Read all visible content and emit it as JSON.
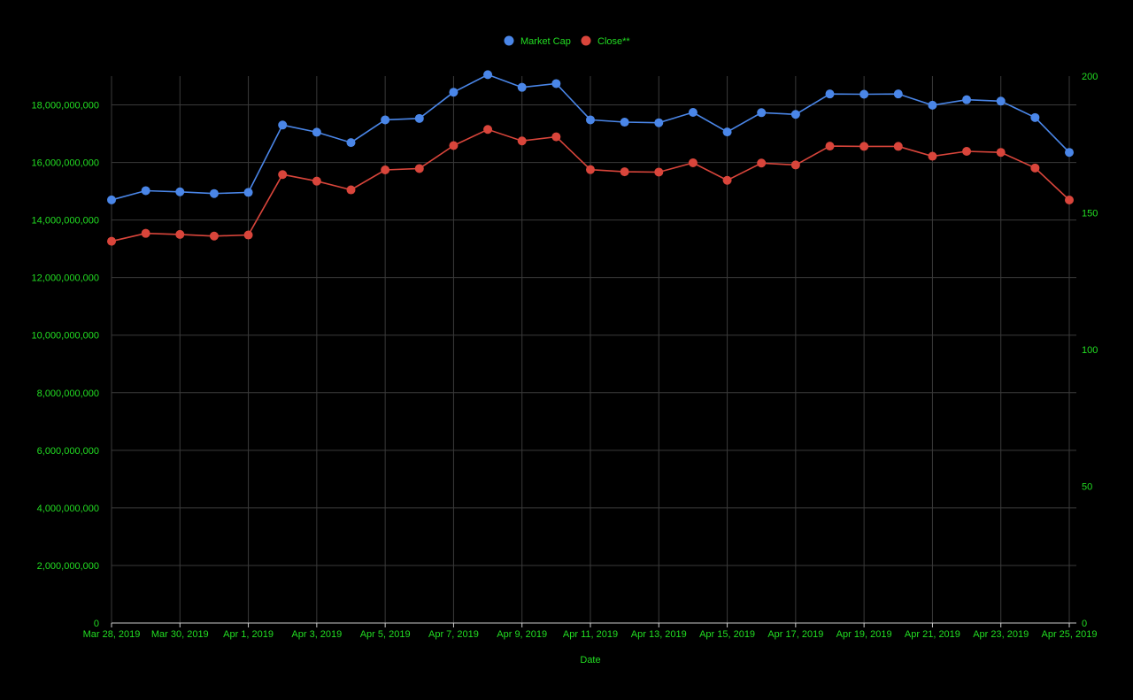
{
  "colors": {
    "background": "#000000",
    "text": "#22dd22",
    "grid": "#3a3a3a",
    "baseline": "#cccccc",
    "market_cap": "#4a86e8",
    "close": "#d9453b"
  },
  "chart_data": {
    "type": "line",
    "x_axis_title": "Date",
    "x_tick_labels": [
      "Mar 28, 2019",
      "Mar 30, 2019",
      "Apr 1, 2019",
      "Apr 3, 2019",
      "Apr 5, 2019",
      "Apr 7, 2019",
      "Apr 9, 2019",
      "Apr 11, 2019",
      "Apr 13, 2019",
      "Apr 15, 2019",
      "Apr 17, 2019",
      "Apr 19, 2019",
      "Apr 21, 2019",
      "Apr 23, 2019",
      "Apr 25, 2019"
    ],
    "x": [
      "Mar 28, 2019",
      "Mar 29, 2019",
      "Mar 30, 2019",
      "Mar 31, 2019",
      "Apr 1, 2019",
      "Apr 2, 2019",
      "Apr 3, 2019",
      "Apr 4, 2019",
      "Apr 5, 2019",
      "Apr 6, 2019",
      "Apr 7, 2019",
      "Apr 8, 2019",
      "Apr 9, 2019",
      "Apr 10, 2019",
      "Apr 11, 2019",
      "Apr 12, 2019",
      "Apr 13, 2019",
      "Apr 14, 2019",
      "Apr 15, 2019",
      "Apr 16, 2019",
      "Apr 17, 2019",
      "Apr 18, 2019",
      "Apr 19, 2019",
      "Apr 20, 2019",
      "Apr 21, 2019",
      "Apr 22, 2019",
      "Apr 23, 2019",
      "Apr 24, 2019",
      "Apr 25, 2019"
    ],
    "left_axis": {
      "ylim": [
        0,
        19000000000
      ],
      "tick_values": [
        0,
        2000000000,
        4000000000,
        6000000000,
        8000000000,
        10000000000,
        12000000000,
        14000000000,
        16000000000,
        18000000000
      ],
      "tick_labels": [
        "0",
        "2,000,000,000",
        "4,000,000,000",
        "6,000,000,000",
        "8,000,000,000",
        "10,000,000,000",
        "12,000,000,000",
        "14,000,000,000",
        "16,000,000,000",
        "18,000,000,000"
      ]
    },
    "right_axis": {
      "ylim": [
        0,
        200
      ],
      "tick_values": [
        0,
        50,
        100,
        150,
        200
      ],
      "tick_labels": [
        "0",
        "50",
        "100",
        "150",
        "200"
      ]
    },
    "legend_position": "top-center",
    "grid": true,
    "series": [
      {
        "name": "Market Cap",
        "axis": "left",
        "values": [
          14700000000,
          15020000000,
          14980000000,
          14920000000,
          14960000000,
          17300000000,
          17050000000,
          16690000000,
          17480000000,
          17530000000,
          18440000000,
          19050000000,
          18610000000,
          18740000000,
          17480000000,
          17400000000,
          17380000000,
          17740000000,
          17060000000,
          17730000000,
          17670000000,
          18380000000,
          18370000000,
          18380000000,
          17990000000,
          18180000000,
          18130000000,
          17560000000,
          16350000000
        ]
      },
      {
        "name": "Close**",
        "axis": "right",
        "values": [
          139.6,
          142.5,
          142.1,
          141.5,
          141.9,
          164.0,
          161.6,
          158.4,
          165.7,
          166.2,
          174.6,
          180.5,
          176.3,
          177.8,
          165.8,
          165.0,
          164.9,
          168.3,
          161.9,
          168.2,
          167.5,
          174.4,
          174.3,
          174.3,
          170.7,
          172.5,
          172.1,
          166.4,
          154.7
        ]
      }
    ]
  }
}
